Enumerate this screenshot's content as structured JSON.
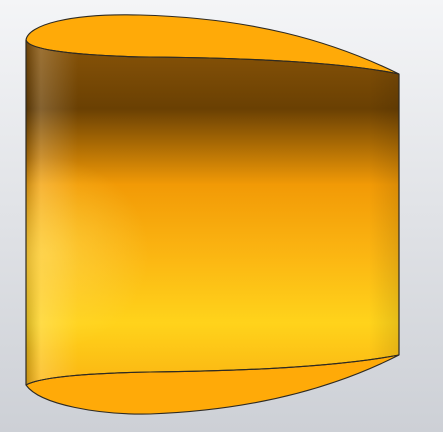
{
  "viewport": {
    "background": {
      "top_color": "#f4f5f7",
      "bottom_color": "#cdd0d6"
    }
  },
  "model": {
    "name": "extruded-airfoil-solid",
    "colors": {
      "edge": "#2e2a22",
      "cap_fill": "#ffaa08",
      "shade_dark": "#6a4003",
      "shade_mid": "#f29a06",
      "shade_bright": "#ffd31b",
      "shade_base": "#fbb512"
    }
  }
}
